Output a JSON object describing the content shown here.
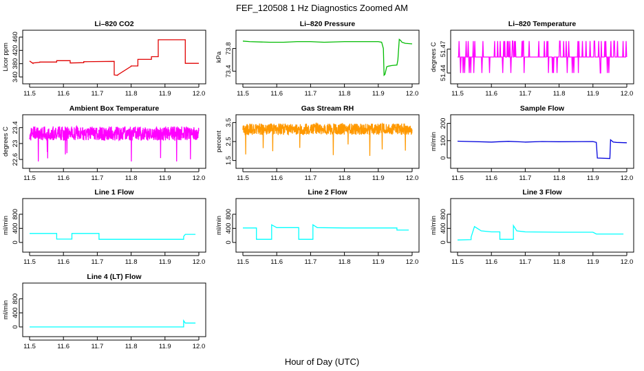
{
  "figure": {
    "title": "FEF_120508 1 Hz Diagnostics Zoomed AM",
    "xlabel": "Hour of Day (UTC)"
  },
  "chart_data": [
    {
      "id": "co2",
      "type": "line",
      "title": "Li–820 CO2",
      "ylabel": "Licor ppm",
      "color": "#e00000",
      "xlim": [
        11.5,
        12.0
      ],
      "ylim": [
        340,
        460
      ],
      "yticks": [
        340,
        380,
        420,
        460
      ],
      "xticks": [
        11.5,
        11.6,
        11.7,
        11.8,
        11.9,
        12.0
      ],
      "x": [
        11.5,
        11.51,
        11.51,
        11.53,
        11.53,
        11.58,
        11.58,
        11.62,
        11.62,
        11.66,
        11.66,
        11.75,
        11.75,
        11.76,
        11.76,
        11.8,
        11.8,
        11.82,
        11.82,
        11.86,
        11.86,
        11.88,
        11.88,
        11.96,
        11.96,
        12.0
      ],
      "y": [
        388,
        381,
        382,
        384,
        385,
        385,
        389,
        389,
        382,
        383,
        386,
        387,
        346,
        345,
        346,
        372,
        373,
        373,
        393,
        393,
        401,
        401,
        452,
        452,
        381,
        381
      ]
    },
    {
      "id": "pressure",
      "type": "line",
      "title": "Li–820 Pressure",
      "ylabel": "kPa",
      "color": "#00bb00",
      "xlim": [
        11.5,
        12.0
      ],
      "ylim": [
        73.3,
        74.0
      ],
      "yticks": [
        73.4,
        73.8
      ],
      "xticks": [
        11.5,
        11.6,
        11.7,
        11.8,
        11.9,
        12.0
      ],
      "x": [
        11.5,
        11.52,
        11.58,
        11.62,
        11.66,
        11.7,
        11.74,
        11.8,
        11.86,
        11.9,
        11.91,
        11.915,
        11.917,
        11.92,
        11.925,
        11.93,
        11.94,
        11.955,
        11.958,
        11.962,
        11.966,
        11.97,
        11.98,
        12.0
      ],
      "y": [
        73.93,
        73.92,
        73.91,
        73.91,
        73.92,
        73.92,
        73.91,
        73.92,
        73.92,
        73.92,
        73.91,
        73.8,
        73.33,
        73.35,
        73.48,
        73.49,
        73.5,
        73.51,
        73.6,
        73.96,
        73.94,
        73.91,
        73.89,
        73.88
      ]
    },
    {
      "id": "licor_temp",
      "type": "line",
      "title": "Li–820 Temperature",
      "ylabel": "degrees C",
      "color": "#ff00ff",
      "xlim": [
        11.5,
        12.0
      ],
      "ylim": [
        51.435,
        51.485
      ],
      "yticks": [
        51.44,
        51.47
      ],
      "xticks": [
        11.5,
        11.6,
        11.7,
        11.8,
        11.9,
        12.0
      ],
      "levels": [
        51.44,
        51.46,
        51.48
      ]
    },
    {
      "id": "ambient_temp",
      "type": "line",
      "title": "Ambient Box Temperature",
      "ylabel": "degrees C",
      "color": "#ff00ff",
      "xlim": [
        11.5,
        12.0
      ],
      "ylim": [
        22.55,
        23.55
      ],
      "yticks": [
        22.6,
        23.0,
        23.4
      ],
      "xticks": [
        11.5,
        11.6,
        11.7,
        11.8,
        11.9,
        12.0
      ],
      "center": 23.25,
      "spread": 0.18
    },
    {
      "id": "rh",
      "type": "line",
      "title": "Gas Stream RH",
      "ylabel": "percent",
      "color": "#ff9900",
      "xlim": [
        11.5,
        12.0
      ],
      "ylim": [
        1.45,
        3.55
      ],
      "yticks": [
        1.5,
        2.5,
        3.5
      ],
      "xticks": [
        11.5,
        11.6,
        11.7,
        11.8,
        11.9,
        12.0
      ],
      "center": 3.15,
      "spread": 0.3
    },
    {
      "id": "sample_flow",
      "type": "line",
      "title": "Sample Flow",
      "ylabel": "ml/min",
      "color": "#0000dd",
      "xlim": [
        11.5,
        12.0
      ],
      "ylim": [
        -20,
        210
      ],
      "yticks": [
        0,
        100,
        200
      ],
      "xticks": [
        11.5,
        11.6,
        11.7,
        11.8,
        11.9,
        12.0
      ],
      "x": [
        11.5,
        11.6,
        11.65,
        11.7,
        11.75,
        11.8,
        11.9,
        11.91,
        11.913,
        11.95,
        11.952,
        11.96,
        11.97,
        12.0
      ],
      "y": [
        97,
        92,
        96,
        92,
        95,
        94,
        95,
        90,
        0,
        -3,
        105,
        92,
        90,
        88
      ]
    },
    {
      "id": "line1_flow",
      "type": "line",
      "title": "Line 1 Flow",
      "ylabel": "ml/min",
      "color": "#00ffff",
      "xlim": [
        11.5,
        12.0
      ],
      "ylim": [
        -80,
        1050
      ],
      "yticks": [
        0,
        400,
        800
      ],
      "xticks": [
        11.5,
        11.6,
        11.7,
        11.8,
        11.9,
        12.0
      ],
      "x": [
        11.5,
        11.58,
        11.58,
        11.625,
        11.625,
        11.705,
        11.705,
        11.955,
        11.955,
        11.96,
        11.97,
        11.99
      ],
      "y": [
        255,
        255,
        95,
        95,
        255,
        255,
        90,
        90,
        170,
        230,
        230,
        230
      ]
    },
    {
      "id": "line2_flow",
      "type": "line",
      "title": "Line 2 Flow",
      "ylabel": "ml/min",
      "color": "#00ffff",
      "xlim": [
        11.5,
        12.0
      ],
      "ylim": [
        -80,
        1050
      ],
      "yticks": [
        0,
        400,
        800
      ],
      "xticks": [
        11.5,
        11.6,
        11.7,
        11.8,
        11.9,
        12.0
      ],
      "x": [
        11.5,
        11.54,
        11.54,
        11.585,
        11.585,
        11.6,
        11.665,
        11.665,
        11.707,
        11.707,
        11.72,
        11.8,
        11.9,
        11.955,
        11.955,
        11.99
      ],
      "y": [
        410,
        410,
        90,
        90,
        500,
        420,
        420,
        90,
        90,
        500,
        420,
        410,
        410,
        410,
        350,
        350
      ]
    },
    {
      "id": "line3_flow",
      "type": "line",
      "title": "Line 3 Flow",
      "ylabel": "ml/min",
      "color": "#00ffff",
      "xlim": [
        11.5,
        12.0
      ],
      "ylim": [
        -80,
        1050
      ],
      "yticks": [
        0,
        400,
        800
      ],
      "xticks": [
        11.5,
        11.6,
        11.7,
        11.8,
        11.9,
        12.0
      ],
      "x": [
        11.5,
        11.54,
        11.54,
        11.55,
        11.57,
        11.6,
        11.625,
        11.625,
        11.665,
        11.665,
        11.675,
        11.7,
        11.8,
        11.9,
        11.91,
        11.99
      ],
      "y": [
        70,
        80,
        150,
        450,
        330,
        300,
        300,
        90,
        90,
        480,
        330,
        300,
        290,
        290,
        240,
        240
      ]
    },
    {
      "id": "line4_flow",
      "type": "line",
      "title": "Line 4 (LT) Flow",
      "ylabel": "ml/min",
      "color": "#00ffff",
      "xlim": [
        11.5,
        12.0
      ],
      "ylim": [
        -80,
        1050
      ],
      "yticks": [
        0,
        400,
        800
      ],
      "xticks": [
        11.5,
        11.6,
        11.7,
        11.8,
        11.9,
        12.0
      ],
      "x": [
        11.5,
        11.955,
        11.955,
        11.96,
        11.97,
        11.99
      ],
      "y": [
        0,
        0,
        180,
        110,
        110,
        110
      ]
    }
  ]
}
